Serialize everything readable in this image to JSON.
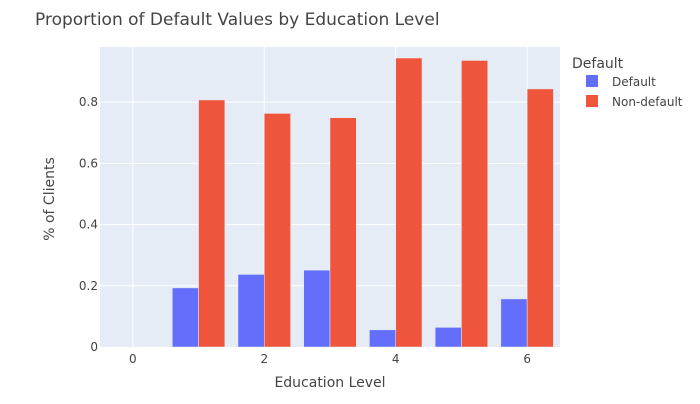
{
  "chart_data": {
    "type": "bar",
    "title": "Proportion of Default Values by Education Level",
    "xlabel": "Education Level",
    "ylabel": "% of Clients",
    "x": [
      0,
      1,
      2,
      3,
      4,
      5,
      6
    ],
    "xlim": [
      -0.5,
      6.5
    ],
    "ylim": [
      0,
      0.98
    ],
    "x_ticks": [
      0,
      2,
      4,
      6
    ],
    "y_ticks": [
      0,
      0.2,
      0.4,
      0.6,
      0.8
    ],
    "y_tick_labels": [
      "0",
      "0.2",
      "0.4",
      "0.6",
      "0.8"
    ],
    "grid": true,
    "legend": {
      "title": "Default",
      "position": "top-right"
    },
    "series": [
      {
        "name": "Default",
        "color": "#636efa",
        "values": [
          0,
          0.193,
          0.237,
          0.251,
          0.056,
          0.064,
          0.157
        ]
      },
      {
        "name": "Non-default",
        "color": "#ef553b",
        "values": [
          0,
          0.807,
          0.763,
          0.749,
          0.944,
          0.936,
          0.843
        ]
      }
    ],
    "colors": {
      "plot_background": "#e5ecf6",
      "gridline": "#ffffff",
      "text": "#444444"
    }
  }
}
